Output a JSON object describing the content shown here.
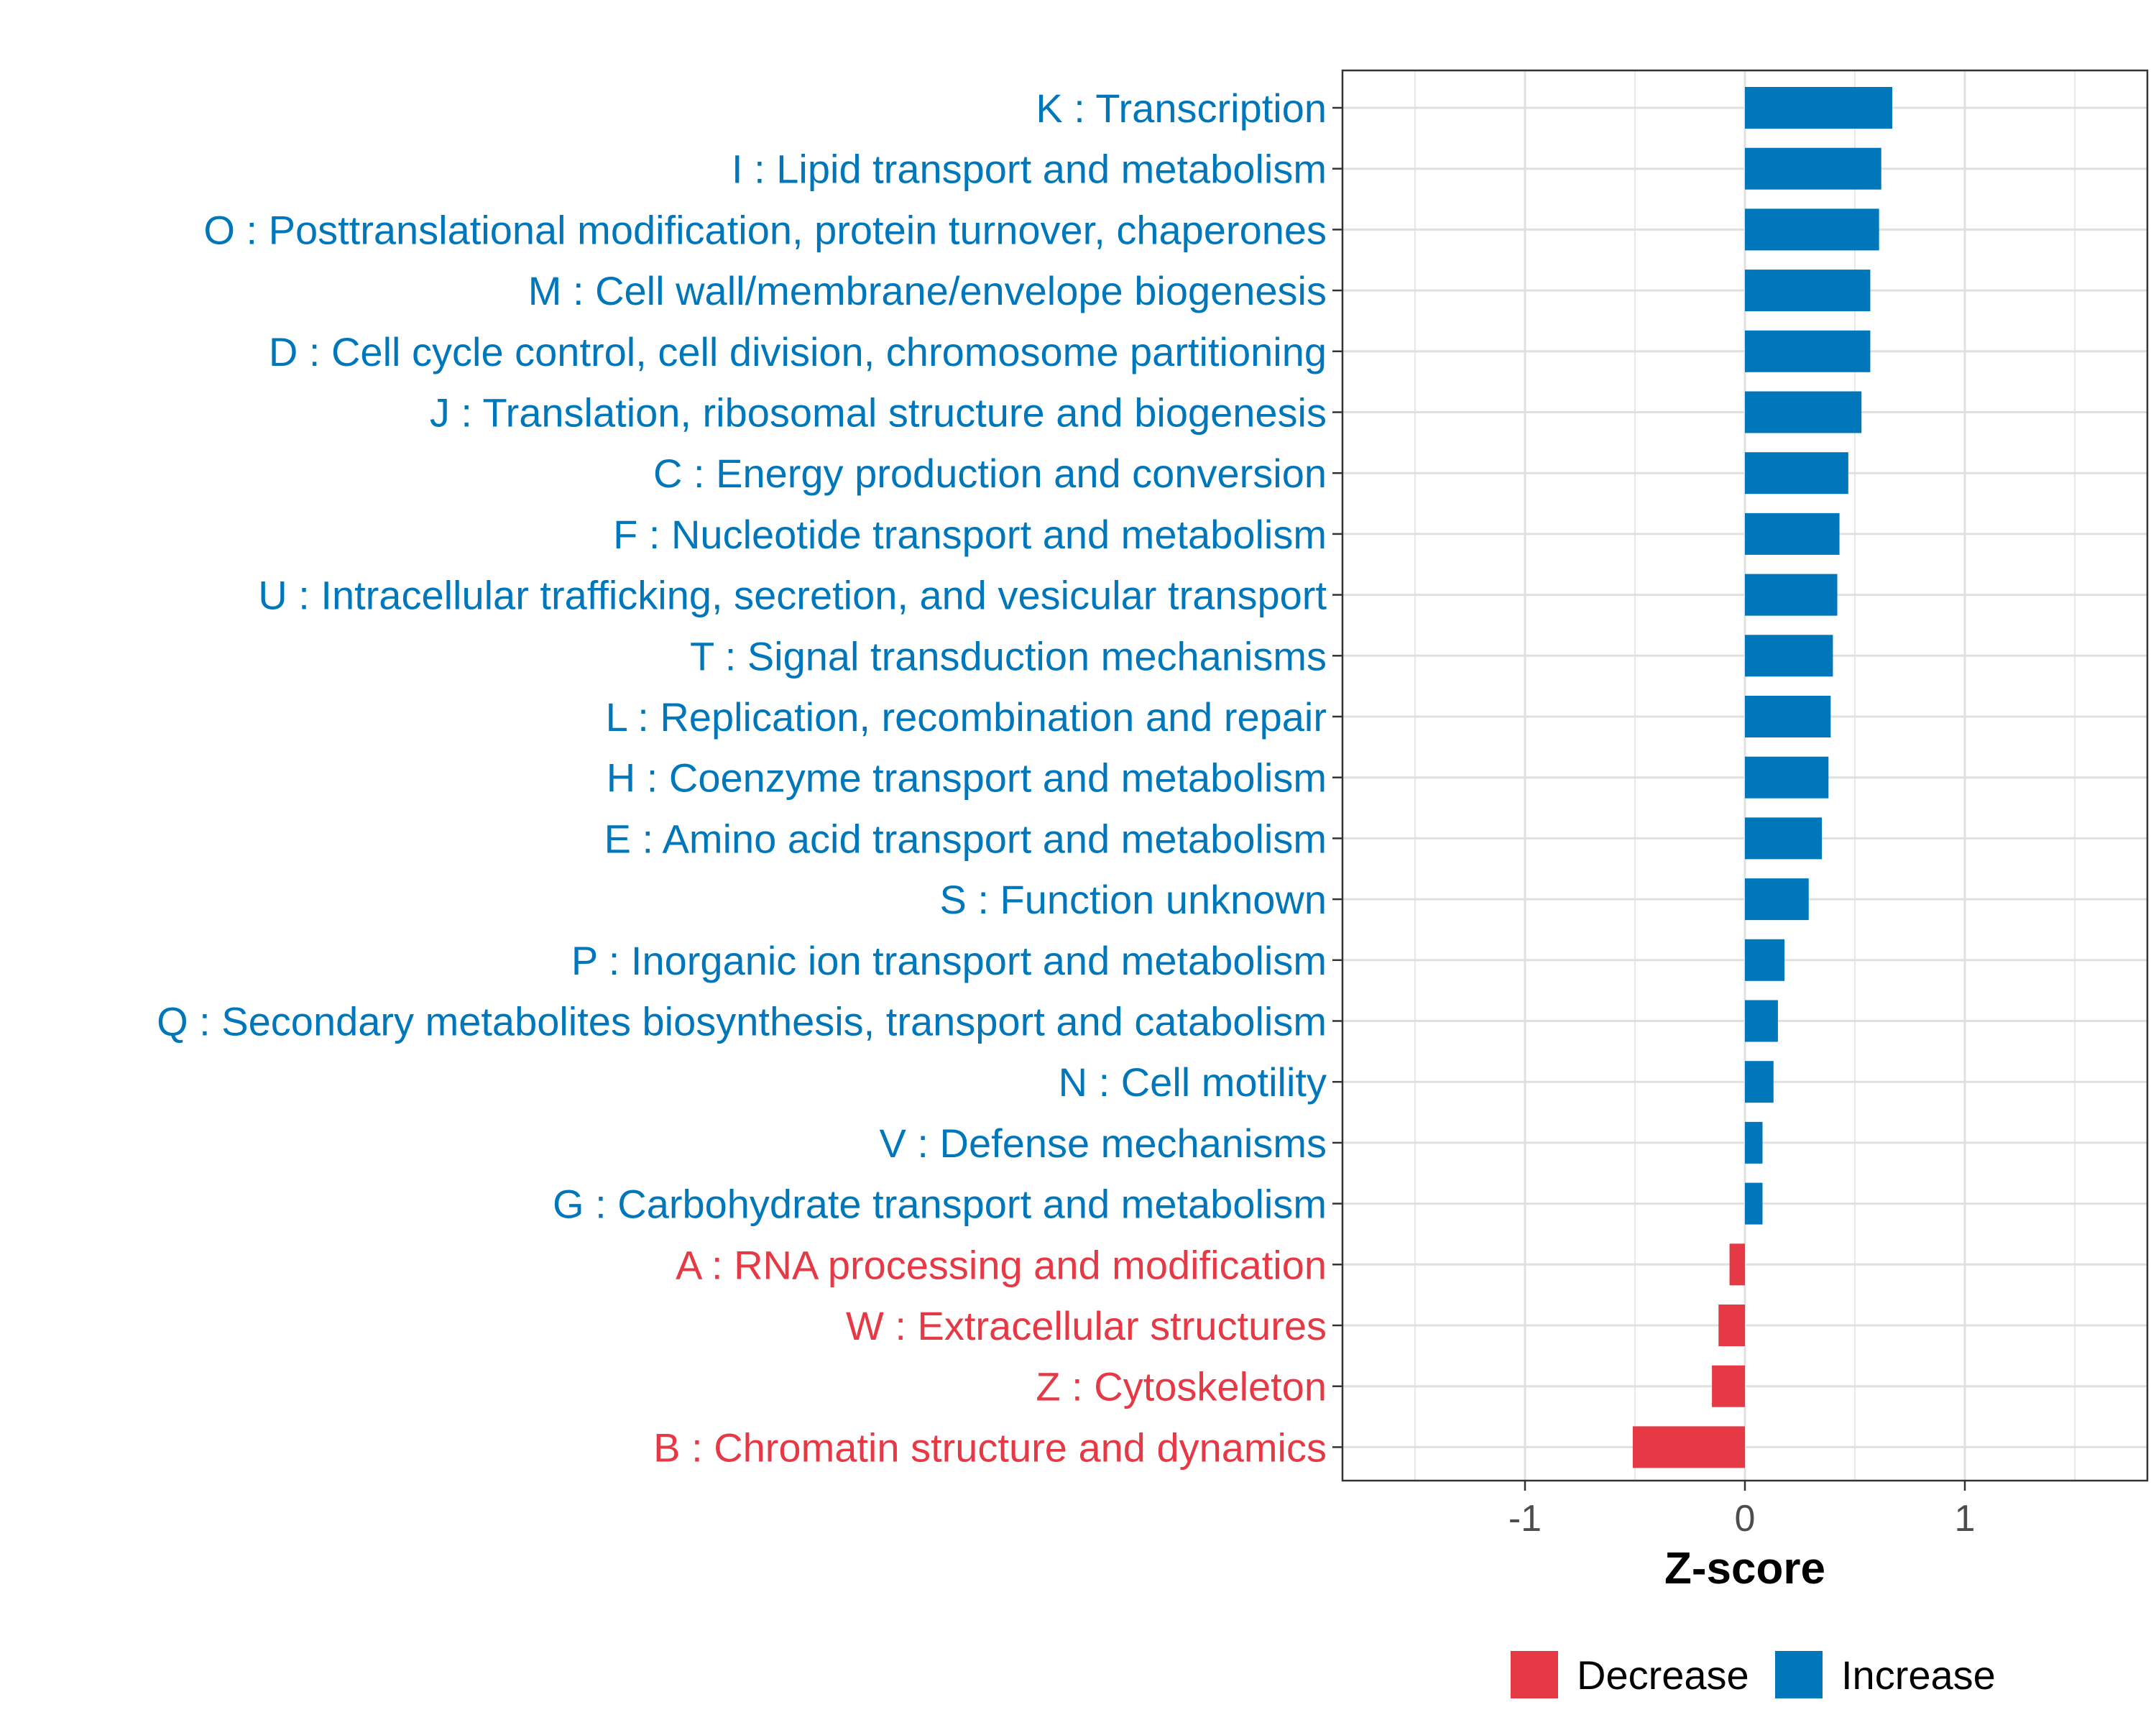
{
  "chart_data": {
    "type": "bar",
    "orientation": "horizontal",
    "title": "",
    "xlabel": "Z-score",
    "ylabel": "",
    "xlim": [
      -1.83,
      1.83
    ],
    "x_ticks": [
      -1,
      0,
      1
    ],
    "x_tick_labels": [
      "-1",
      "0",
      "1"
    ],
    "grid": true,
    "categories": [
      "K : Transcription",
      "I : Lipid transport and metabolism",
      "O : Posttranslational modification, protein turnover, chaperones",
      "M : Cell wall/membrane/envelope biogenesis",
      "D : Cell cycle control, cell division, chromosome partitioning",
      "J : Translation, ribosomal structure and biogenesis",
      "C : Energy production and conversion",
      "F : Nucleotide transport and metabolism",
      "U : Intracellular trafficking, secretion, and vesicular transport",
      "T : Signal transduction mechanisms",
      "L : Replication, recombination and repair",
      "H : Coenzyme transport and metabolism",
      "E : Amino acid transport and metabolism",
      "S : Function unknown",
      "P : Inorganic ion transport and metabolism",
      "Q : Secondary metabolites biosynthesis, transport and catabolism",
      "N : Cell motility",
      "V : Defense mechanisms",
      "G : Carbohydrate transport and metabolism",
      "A : RNA processing and modification",
      "W : Extracellular structures",
      "Z : Cytoskeleton",
      "B : Chromatin structure and dynamics"
    ],
    "values": [
      0.67,
      0.62,
      0.61,
      0.57,
      0.57,
      0.53,
      0.47,
      0.43,
      0.42,
      0.4,
      0.39,
      0.38,
      0.35,
      0.29,
      0.18,
      0.15,
      0.13,
      0.08,
      0.08,
      -0.07,
      -0.12,
      -0.15,
      -0.51
    ],
    "direction": [
      "Increase",
      "Increase",
      "Increase",
      "Increase",
      "Increase",
      "Increase",
      "Increase",
      "Increase",
      "Increase",
      "Increase",
      "Increase",
      "Increase",
      "Increase",
      "Increase",
      "Increase",
      "Increase",
      "Increase",
      "Increase",
      "Increase",
      "Decrease",
      "Decrease",
      "Decrease",
      "Decrease"
    ],
    "legend": {
      "position": "bottom",
      "items": [
        {
          "label": "Decrease",
          "color": "#E63946"
        },
        {
          "label": "Increase",
          "color": "#0077BB"
        }
      ]
    },
    "colors": {
      "Increase": "#0077BB",
      "Decrease": "#E63946"
    }
  }
}
